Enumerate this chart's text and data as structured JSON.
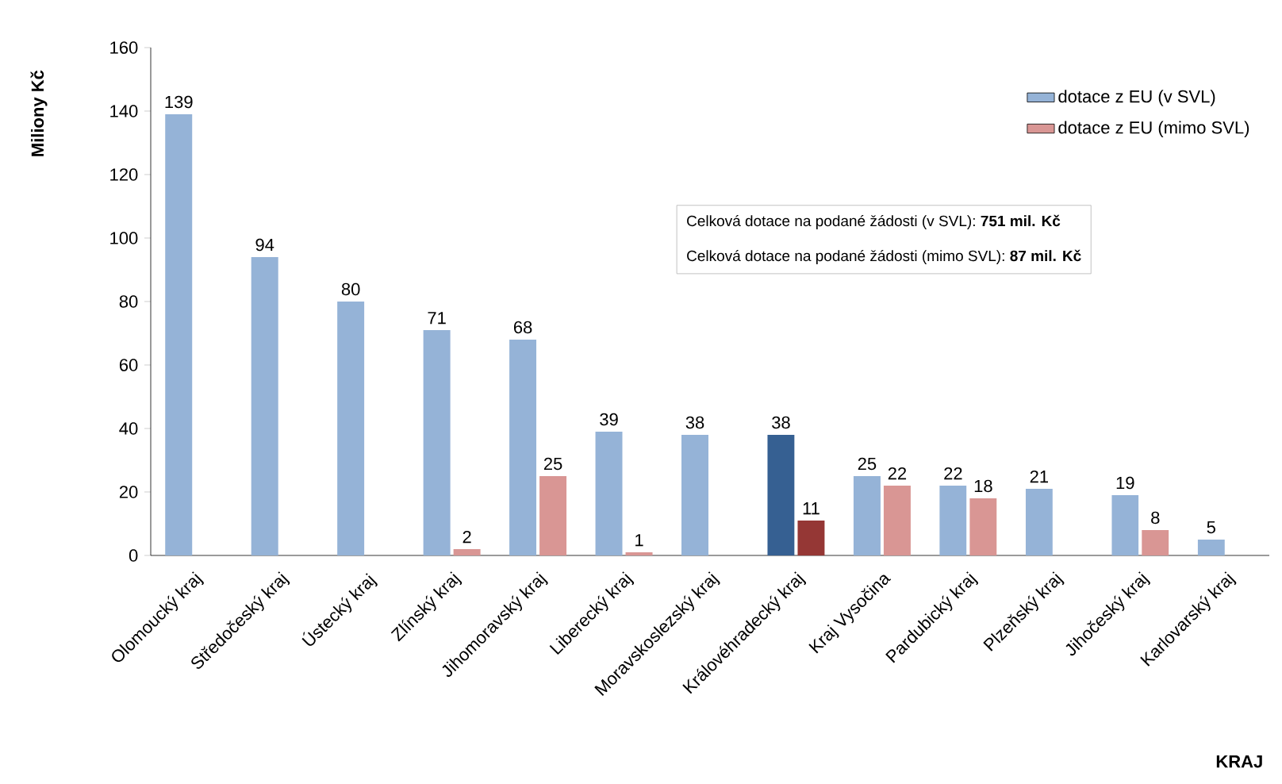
{
  "chart_data": {
    "type": "bar",
    "ylabel": "Miliony Kč",
    "xlabel": "KRAJ",
    "categories": [
      "Olomoucký kraj",
      "Středočeský kraj",
      "Ústecký kraj",
      "Zlínský kraj",
      "Jihomoravský kraj",
      "Liberecký kraj",
      "Moravskoslezský kraj",
      "Královéhradecký kraj",
      "Kraj Vysočina",
      "Pardubický kraj",
      "Plzeňský kraj",
      "Jihočeský kraj",
      "Karlovarský kraj"
    ],
    "series": [
      {
        "name": "dotace z EU (v SVL)",
        "color": "#95b3d7",
        "colors": [
          "#95b3d7",
          "#95b3d7",
          "#95b3d7",
          "#95b3d7",
          "#95b3d7",
          "#95b3d7",
          "#95b3d7",
          "#366092",
          "#95b3d7",
          "#95b3d7",
          "#95b3d7",
          "#95b3d7",
          "#95b3d7"
        ],
        "values": [
          139,
          94,
          80,
          71,
          68,
          39,
          38,
          38,
          25,
          22,
          21,
          19,
          5
        ]
      },
      {
        "name": "dotace z EU (mimo SVL)",
        "color": "#d99694",
        "colors": [
          "#d99694",
          "#d99694",
          "#d99694",
          "#d99694",
          "#d99694",
          "#d99694",
          "#d99694",
          "#953735",
          "#d99694",
          "#d99694",
          "#d99694",
          "#d99694",
          "#d99694"
        ],
        "values": [
          null,
          null,
          null,
          2,
          25,
          1,
          null,
          11,
          22,
          18,
          null,
          8,
          null
        ]
      }
    ],
    "ylim": [
      0,
      160
    ],
    "yticks": [
      0,
      20,
      40,
      60,
      80,
      100,
      120,
      140,
      160
    ],
    "data_labels": true,
    "legend": "top right",
    "annotations": [
      "Celková dotace na podané žádosti (v SVL): **751 mil. Kč**",
      "Celková dotace na podané žádosti (mimo SVL): **87 mil. Kč**"
    ]
  }
}
